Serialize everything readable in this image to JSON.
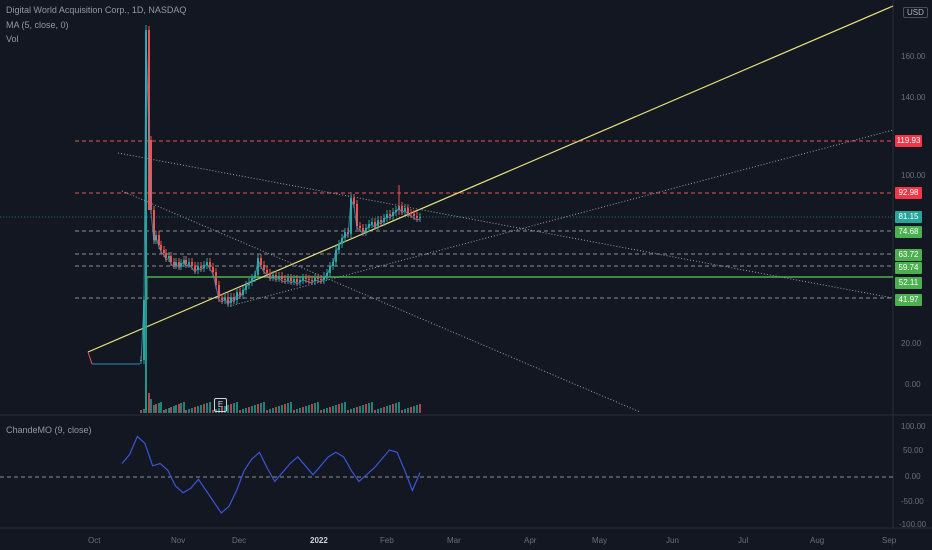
{
  "legend": {
    "title": "Digital World Acquisition Corp., 1D, NASDAQ",
    "ma": "MA (5, close, 0)",
    "vol": "Vol"
  },
  "osc_legend": "ChandeMO (9, close)",
  "currency": "USD",
  "event_marker": "E",
  "price_ticks": [
    "160.00",
    "140.00",
    "100.00",
    "20.00",
    "0.00"
  ],
  "osc_ticks": [
    "100.00",
    "50.00",
    "0.00",
    "-50.00",
    "-100.00"
  ],
  "time_ticks": [
    "Oct",
    "Nov",
    "Dec",
    "2022",
    "Feb",
    "Mar",
    "Apr",
    "May",
    "Jun",
    "Jul",
    "Aug",
    "Sep"
  ],
  "levels": [
    {
      "label": "119.93",
      "kind": "resistance",
      "color": "#f23645"
    },
    {
      "label": "92.98",
      "kind": "resistance",
      "color": "#f23645"
    },
    {
      "label": "81.15",
      "kind": "last",
      "color": "#26a69a"
    },
    {
      "label": "74.68",
      "kind": "support",
      "color": "#4caf50"
    },
    {
      "label": "63.72",
      "kind": "support",
      "color": "#4caf50"
    },
    {
      "label": "59.74",
      "kind": "support",
      "color": "#4caf50"
    },
    {
      "label": "52.11",
      "kind": "support",
      "color": "#4caf50"
    },
    {
      "label": "41.97",
      "kind": "support",
      "color": "#4caf50"
    }
  ],
  "colors": {
    "background": "#131722",
    "up": "#26a69a",
    "down": "#ef5350",
    "trendline_main": "#e6e07a",
    "oscillator": "#3a55d8",
    "support_band": "#4caf50"
  },
  "chart_data": {
    "type": "candlestick",
    "scale": "log",
    "x_range": [
      "2021-09-15",
      "2022-09-30"
    ],
    "price_range": [
      -10,
      190
    ],
    "series": [
      {
        "name": "price_close",
        "x": [
          "2021-09-28",
          "2021-10-01",
          "2021-10-20",
          "2021-10-21",
          "2021-10-22",
          "2021-10-25",
          "2021-11-01",
          "2021-11-15",
          "2021-12-01",
          "2021-12-15",
          "2022-01-01",
          "2022-01-10",
          "2022-01-20",
          "2022-01-28",
          "2022-02-04",
          "2022-02-10",
          "2022-02-15"
        ],
        "values": [
          10,
          10,
          10,
          45,
          120,
          95,
          70,
          58,
          44,
          55,
          52,
          60,
          92,
          78,
          88,
          86,
          81
        ]
      }
    ],
    "oscillator": {
      "name": "ChandeMO (9, close)",
      "range": [
        -100,
        100
      ],
      "values": [
        30,
        50,
        90,
        75,
        25,
        30,
        15,
        -20,
        -35,
        -25,
        -5,
        -30,
        -55,
        -80,
        -65,
        -30,
        15,
        40,
        55,
        20,
        -10,
        10,
        30,
        45,
        25,
        5,
        25,
        45,
        55,
        45,
        15,
        -10,
        5,
        20,
        40,
        60,
        55,
        15,
        -30,
        10
      ]
    }
  }
}
